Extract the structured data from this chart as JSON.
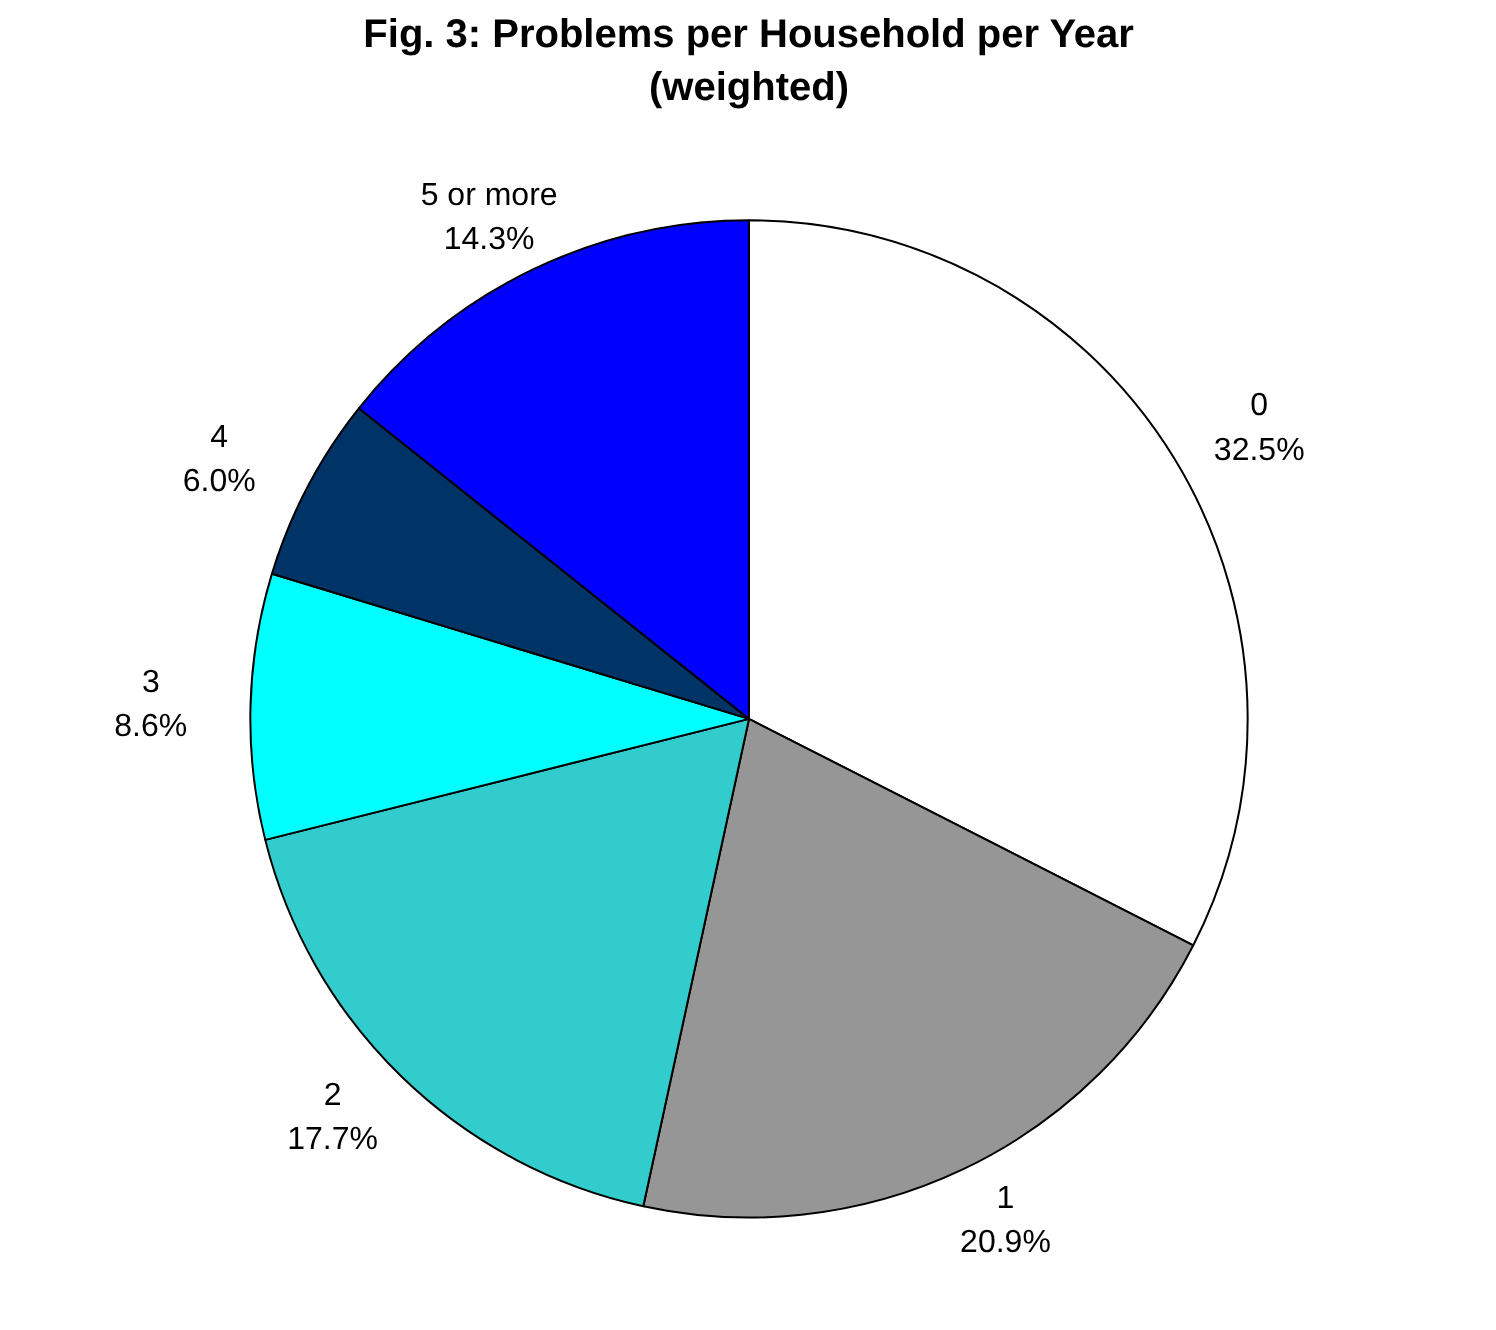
{
  "chart_data": {
    "type": "pie",
    "title": "Fig. 3: Problems per Household per Year\n(weighted)",
    "categories": [
      "0",
      "1",
      "2",
      "3",
      "4",
      "5 or more"
    ],
    "values": [
      32.5,
      20.9,
      17.7,
      8.6,
      6.0,
      14.3
    ],
    "value_labels": [
      "32.5%",
      "20.9%",
      "17.7%",
      "8.6%",
      "6.0%",
      "14.3%"
    ],
    "colors": [
      "#ffffff",
      "#969696",
      "#33cccc",
      "#00ffff",
      "#003366",
      "#0000ff"
    ]
  }
}
